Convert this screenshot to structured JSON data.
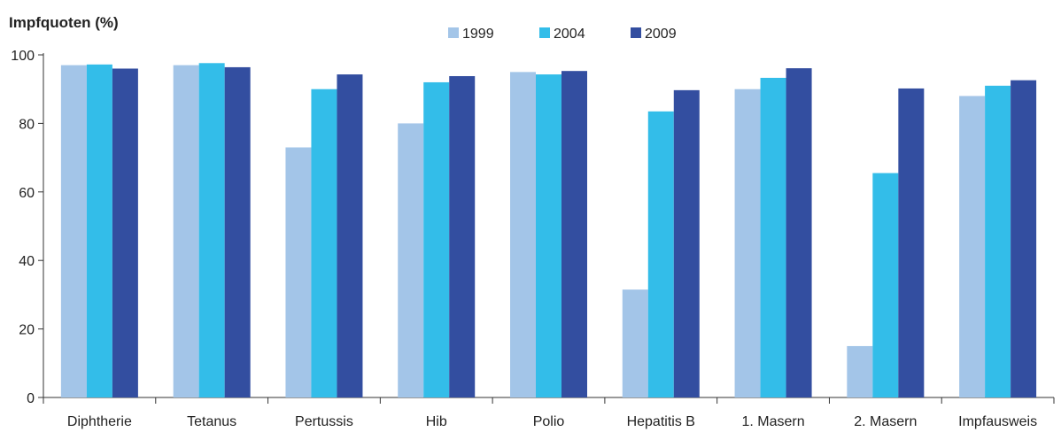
{
  "chart_data": {
    "type": "bar",
    "title": "Impfquoten (%)",
    "xlabel": "",
    "ylabel": "",
    "ylim": [
      0,
      100
    ],
    "yticks": [
      "0",
      "20",
      "40",
      "60",
      "80",
      "100"
    ],
    "grid": false,
    "legend_position": "top-center",
    "categories": [
      "Diphtherie",
      "Tetanus",
      "Pertussis",
      "Hib",
      "Polio",
      "Hepatitis B",
      "1. Masern",
      "2. Masern",
      "Impfausweis"
    ],
    "series": [
      {
        "name": "1999",
        "color": "#a3c5e8",
        "values": [
          97,
          97,
          73,
          80,
          95,
          31.5,
          90,
          15,
          88
        ]
      },
      {
        "name": "2004",
        "color": "#33bde9",
        "values": [
          97.2,
          97.6,
          90,
          92,
          94.3,
          83.5,
          93.3,
          65.5,
          91
        ]
      },
      {
        "name": "2009",
        "color": "#334ea0",
        "values": [
          96,
          96.4,
          94.3,
          93.8,
          95.3,
          89.7,
          96.1,
          90.2,
          92.6
        ]
      }
    ]
  }
}
